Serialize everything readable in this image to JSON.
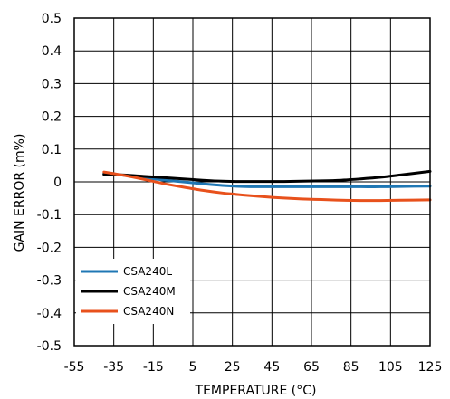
{
  "chart_data": {
    "type": "line",
    "title": "",
    "xlabel": "TEMPERATURE (°C)",
    "ylabel": "GAIN ERROR (m%)",
    "xlim": [
      -55,
      125
    ],
    "ylim": [
      -0.5,
      0.5
    ],
    "xticks": [
      -55,
      -35,
      -15,
      5,
      25,
      45,
      65,
      85,
      105,
      125
    ],
    "yticks": [
      0.5,
      0.4,
      0.3,
      0.2,
      0.1,
      0,
      -0.1,
      -0.2,
      -0.3,
      -0.4,
      -0.5
    ],
    "xtick_labels": [
      "-55",
      "-35",
      "-15",
      "5",
      "25",
      "45",
      "65",
      "85",
      "105",
      "125"
    ],
    "ytick_labels": [
      "0.5",
      "0.4",
      "0.3",
      "0.2",
      "0.1",
      "0",
      "-0.1",
      "-0.2",
      "-0.3",
      "-0.4",
      "-0.5"
    ],
    "grid": true,
    "legend_position": "bottom-left",
    "series": [
      {
        "name": "CSA240L",
        "color": "#1f77b4",
        "x": [
          -40,
          -30,
          -20,
          -10,
          0,
          10,
          20,
          30,
          40,
          50,
          60,
          70,
          80,
          90,
          100,
          110,
          125
        ],
        "y": [
          0.025,
          0.02,
          0.013,
          0.006,
          0.0,
          -0.006,
          -0.011,
          -0.014,
          -0.015,
          -0.015,
          -0.015,
          -0.015,
          -0.015,
          -0.015,
          -0.015,
          -0.014,
          -0.013
        ]
      },
      {
        "name": "CSA240M",
        "color": "#000000",
        "x": [
          -40,
          -30,
          -20,
          -10,
          0,
          10,
          20,
          30,
          40,
          50,
          60,
          70,
          80,
          90,
          100,
          110,
          125
        ],
        "y": [
          0.023,
          0.021,
          0.017,
          0.013,
          0.009,
          0.005,
          0.002,
          0.001,
          0.001,
          0.001,
          0.002,
          0.003,
          0.005,
          0.009,
          0.014,
          0.021,
          0.032
        ]
      },
      {
        "name": "CSA240N",
        "color": "#e8511c",
        "x": [
          -40,
          -30,
          -20,
          -10,
          0,
          10,
          20,
          30,
          40,
          50,
          60,
          70,
          80,
          90,
          100,
          110,
          125
        ],
        "y": [
          0.03,
          0.02,
          0.008,
          -0.005,
          -0.016,
          -0.026,
          -0.034,
          -0.04,
          -0.045,
          -0.049,
          -0.052,
          -0.054,
          -0.056,
          -0.057,
          -0.057,
          -0.056,
          -0.055
        ]
      }
    ]
  }
}
